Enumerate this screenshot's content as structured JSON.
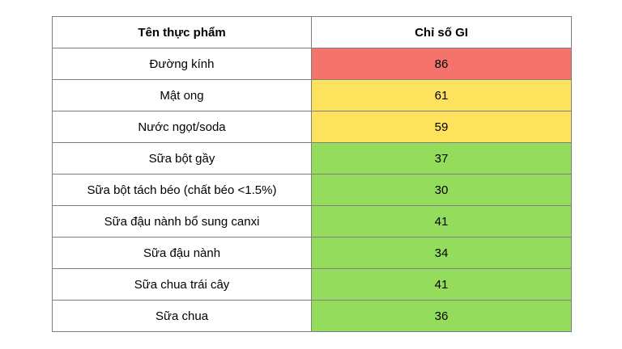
{
  "table": {
    "headers": [
      "Tên thực phẩm",
      "Chỉ số GI"
    ],
    "colors": {
      "red": "#f4736b",
      "yellow": "#fde25e",
      "green": "#94dc5c"
    },
    "rows": [
      {
        "food": "Đường kính",
        "gi": "86",
        "level": "red"
      },
      {
        "food": "Mật ong",
        "gi": "61",
        "level": "yellow"
      },
      {
        "food": "Nước ngọt/soda",
        "gi": "59",
        "level": "yellow"
      },
      {
        "food": "Sữa bột gầy",
        "gi": "37",
        "level": "green"
      },
      {
        "food": "Sữa bột tách béo (chất béo <1.5%)",
        "gi": "30",
        "level": "green"
      },
      {
        "food": "Sữa đậu nành bổ sung canxi",
        "gi": "41",
        "level": "green"
      },
      {
        "food": "Sữa đậu nành",
        "gi": "34",
        "level": "green"
      },
      {
        "food": "Sữa chua trái cây",
        "gi": "41",
        "level": "green"
      },
      {
        "food": "Sữa chua",
        "gi": "36",
        "level": "green"
      }
    ]
  }
}
